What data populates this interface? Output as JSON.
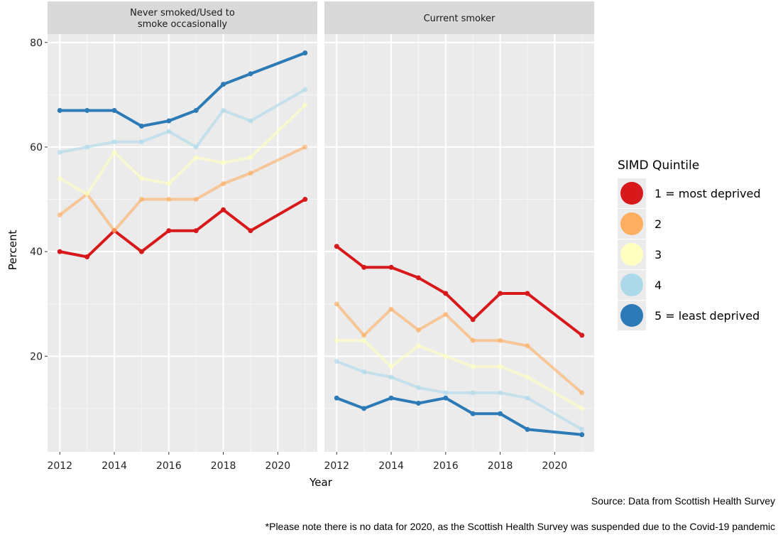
{
  "chart_data": {
    "type": "line",
    "xlabel": "Year",
    "ylabel": "Percent",
    "ylim": [
      1.7,
      81.6
    ],
    "yticks": [
      20,
      40,
      60,
      80
    ],
    "xticks": [
      2012,
      2014,
      2016,
      2018,
      2020
    ],
    "xlim": [
      2011.55,
      2021.45
    ],
    "grid": true,
    "legend": {
      "title": "SIMD Quintile",
      "position": "right"
    },
    "x": [
      2012,
      2013,
      2014,
      2015,
      2016,
      2017,
      2018,
      2019,
      2021
    ],
    "panels": [
      {
        "title": "Never smoked/Used to\nsmoke occasionally",
        "series": [
          {
            "name": "1 = most deprived",
            "color": "#d7191c",
            "values": [
              40,
              39,
              44,
              40,
              44,
              44,
              48,
              44,
              50
            ]
          },
          {
            "name": "2",
            "color": "#fdae61",
            "values": [
              47,
              51,
              44,
              50,
              50,
              50,
              53,
              55,
              60
            ]
          },
          {
            "name": "3",
            "color": "#ffffbf",
            "values": [
              54,
              51,
              59,
              54,
              53,
              58,
              57,
              58,
              68
            ]
          },
          {
            "name": "4",
            "color": "#abd9e9",
            "values": [
              59,
              60,
              61,
              61,
              63,
              60,
              67,
              65,
              71
            ]
          },
          {
            "name": "5 = least deprived",
            "color": "#2c7bb6",
            "values": [
              67,
              67,
              67,
              64,
              65,
              67,
              72,
              74,
              78
            ]
          }
        ]
      },
      {
        "title": "Current smoker",
        "series": [
          {
            "name": "1 = most deprived",
            "color": "#d7191c",
            "values": [
              41,
              37,
              37,
              35,
              32,
              27,
              32,
              32,
              24
            ]
          },
          {
            "name": "2",
            "color": "#fdae61",
            "values": [
              30,
              24,
              29,
              25,
              28,
              23,
              23,
              22,
              13
            ]
          },
          {
            "name": "3",
            "color": "#ffffbf",
            "values": [
              23,
              23,
              18,
              22,
              20,
              18,
              18,
              16,
              10
            ]
          },
          {
            "name": "4",
            "color": "#abd9e9",
            "values": [
              19,
              17,
              16,
              14,
              13,
              13,
              13,
              12,
              6
            ]
          },
          {
            "name": "5 = least deprived",
            "color": "#2c7bb6",
            "values": [
              12,
              10,
              12,
              11,
              12,
              9,
              9,
              6,
              5
            ]
          }
        ]
      }
    ]
  },
  "captions": {
    "source": "Source: Data from Scottish Health Survey",
    "note": "*Please note there is no data for 2020, as the Scottish Health Survey was suspended due to the Covid-19 pandemic"
  }
}
